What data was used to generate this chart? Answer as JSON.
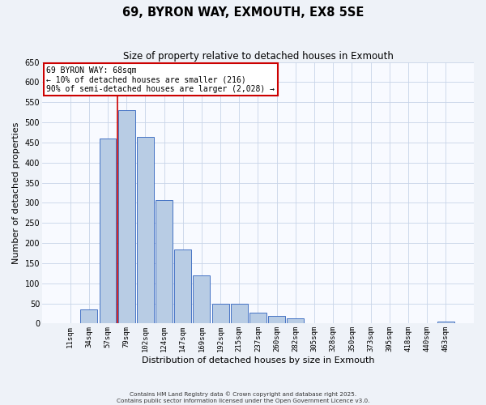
{
  "title": "69, BYRON WAY, EXMOUTH, EX8 5SE",
  "subtitle": "Size of property relative to detached houses in Exmouth",
  "xlabel": "Distribution of detached houses by size in Exmouth",
  "ylabel": "Number of detached properties",
  "bar_labels": [
    "11sqm",
    "34sqm",
    "57sqm",
    "79sqm",
    "102sqm",
    "124sqm",
    "147sqm",
    "169sqm",
    "192sqm",
    "215sqm",
    "237sqm",
    "260sqm",
    "282sqm",
    "305sqm",
    "328sqm",
    "350sqm",
    "373sqm",
    "395sqm",
    "418sqm",
    "440sqm",
    "463sqm"
  ],
  "bar_values": [
    0,
    35,
    460,
    530,
    465,
    307,
    185,
    120,
    50,
    50,
    28,
    18,
    13,
    0,
    0,
    0,
    0,
    0,
    0,
    0,
    5
  ],
  "bar_color": "#b8cce4",
  "bar_edgecolor": "#4472c4",
  "ylim": [
    0,
    650
  ],
  "yticks": [
    0,
    50,
    100,
    150,
    200,
    250,
    300,
    350,
    400,
    450,
    500,
    550,
    600,
    650
  ],
  "vline_color": "#cc0000",
  "annotation_title": "69 BYRON WAY: 68sqm",
  "annotation_line1": "← 10% of detached houses are smaller (216)",
  "annotation_line2": "90% of semi-detached houses are larger (2,028) →",
  "annotation_box_color": "#cc0000",
  "footer_line1": "Contains HM Land Registry data © Crown copyright and database right 2025.",
  "footer_line2": "Contains public sector information licensed under the Open Government Licence v3.0.",
  "bg_color": "#eef2f8",
  "plot_bg_color": "#f8faff",
  "grid_color": "#c8d4e8",
  "title_fontsize": 10.5,
  "subtitle_fontsize": 8.5,
  "label_fontsize": 8,
  "tick_fontsize": 6.5
}
